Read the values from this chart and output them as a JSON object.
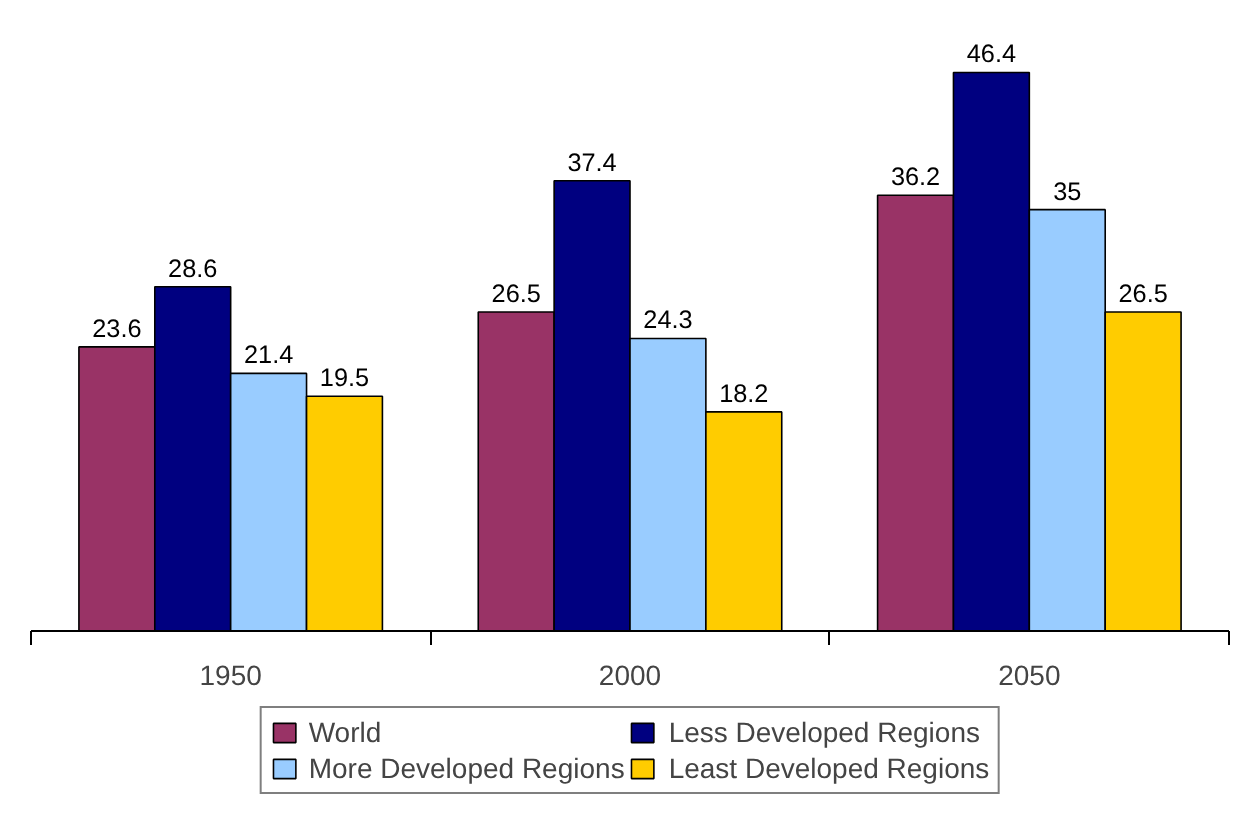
{
  "chart_data": {
    "type": "bar",
    "categories": [
      "1950",
      "2000",
      "2050"
    ],
    "series": [
      {
        "name": "World",
        "color": "#993366",
        "values": [
          23.6,
          26.5,
          36.2
        ]
      },
      {
        "name": "Less Developed Regions",
        "color": "#000080",
        "values": [
          28.6,
          37.4,
          46.4
        ]
      },
      {
        "name": "More Developed Regions",
        "color": "#99ccff",
        "values": [
          21.4,
          24.3,
          35
        ]
      },
      {
        "name": "Least Developed Regions",
        "color": "#ffcc00",
        "values": [
          19.5,
          18.2,
          26.5
        ]
      }
    ],
    "data_labels": true,
    "grid": false,
    "legend": "bottom",
    "tick_labels": "x"
  }
}
